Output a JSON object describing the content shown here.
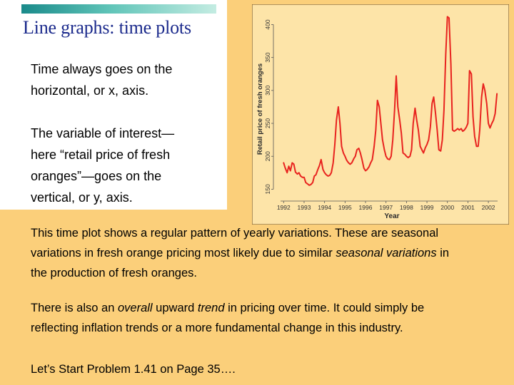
{
  "slide": {
    "title": "Line graphs: time plots",
    "bullet1": [
      "Time always goes on the",
      "horizontal, or x, axis."
    ],
    "bullet2": [
      "The variable of interest—",
      "here “retail price of fresh",
      "oranges”—goes on the",
      "vertical, or y, axis."
    ],
    "para1": {
      "line1": "This time plot shows a regular pattern of yearly variations. These are seasonal",
      "line2_a": "variations in fresh orange pricing most likely due to similar ",
      "line2_italic": "seasonal variations",
      "line2_b": " in",
      "line3": "the production of fresh oranges."
    },
    "para2": {
      "line1_a": "There is also an ",
      "line1_italic1": "overall",
      "line1_b": " upward ",
      "line1_italic2": "trend",
      "line1_c": " in pricing over time. It could simply be",
      "line2": "reflecting inflation trends or a more fundamental change in this industry."
    },
    "para3": "Let’s Start Problem 1.41 on Page 35…."
  },
  "colors": {
    "background": "#fbcf7a",
    "plot_background": "#fde4a8",
    "line": "#e8231f",
    "title_text": "#1b2a8c"
  },
  "chart_data": {
    "type": "line",
    "xlabel": "Year",
    "ylabel": "Retail price of fresh oranges",
    "xlim": [
      1991.85,
      2002.45
    ],
    "ylim": [
      145,
      420
    ],
    "x_ticks": [
      "1992",
      "1993",
      "1994",
      "1995",
      "1996",
      "1997",
      "1998",
      "1999",
      "2000",
      "2001",
      "2002"
    ],
    "y_ticks": [
      "150",
      "200",
      "250",
      "300",
      "350",
      "400"
    ],
    "series": [
      {
        "x": [
          1992.0,
          1992.08,
          1992.17,
          1992.25,
          1992.33,
          1992.42,
          1992.5,
          1992.58,
          1992.67,
          1992.75,
          1992.83,
          1992.92,
          1993.0,
          1993.08,
          1993.17,
          1993.25,
          1993.33,
          1993.42,
          1993.5,
          1993.58,
          1993.67,
          1993.75,
          1993.83,
          1993.92,
          1994.0,
          1994.08,
          1994.17,
          1994.25,
          1994.33,
          1994.42,
          1994.5,
          1994.58,
          1994.67,
          1994.75,
          1994.83,
          1994.92,
          1995.0,
          1995.08,
          1995.17,
          1995.25,
          1995.33,
          1995.42,
          1995.5,
          1995.58,
          1995.67,
          1995.75,
          1995.83,
          1995.92,
          1996.0,
          1996.08,
          1996.17,
          1996.25,
          1996.33,
          1996.42,
          1996.5,
          1996.58,
          1996.67,
          1996.75,
          1996.83,
          1996.92,
          1997.0,
          1997.08,
          1997.17,
          1997.25,
          1997.33,
          1997.42,
          1997.5,
          1997.58,
          1997.67,
          1997.75,
          1997.83,
          1997.92,
          1998.0,
          1998.08,
          1998.17,
          1998.25,
          1998.33,
          1998.42,
          1998.5,
          1998.58,
          1998.67,
          1998.75,
          1998.83,
          1998.92,
          1999.0,
          1999.08,
          1999.17,
          1999.25,
          1999.33,
          1999.42,
          1999.5,
          1999.58,
          1999.67,
          1999.75,
          1999.83,
          1999.92,
          2000.0,
          2000.08,
          2000.17,
          2000.25,
          2000.33,
          2000.42,
          2000.5,
          2000.58,
          2000.67,
          2000.75,
          2000.83,
          2000.92,
          2001.0,
          2001.08,
          2001.17,
          2001.25,
          2001.33,
          2001.42,
          2001.5,
          2001.58,
          2001.67,
          2001.75,
          2001.83,
          2001.92,
          2002.0,
          2002.08,
          2002.17,
          2002.25,
          2002.33,
          2002.42
        ],
        "y": [
          190,
          182,
          175,
          185,
          178,
          190,
          188,
          176,
          173,
          175,
          170,
          168,
          168,
          160,
          158,
          156,
          157,
          160,
          170,
          172,
          180,
          186,
          195,
          180,
          175,
          172,
          170,
          171,
          175,
          190,
          218,
          255,
          275,
          250,
          215,
          205,
          200,
          194,
          190,
          188,
          190,
          196,
          200,
          210,
          212,
          205,
          195,
          182,
          178,
          180,
          184,
          190,
          195,
          215,
          240,
          285,
          275,
          250,
          225,
          210,
          200,
          196,
          195,
          200,
          225,
          270,
          322,
          275,
          255,
          235,
          205,
          203,
          200,
          198,
          200,
          210,
          250,
          273,
          255,
          240,
          215,
          210,
          205,
          213,
          218,
          225,
          245,
          280,
          290,
          265,
          240,
          210,
          208,
          225,
          270,
          355,
          412,
          410,
          340,
          240,
          238,
          240,
          242,
          240,
          242,
          238,
          240,
          244,
          250,
          330,
          325,
          260,
          230,
          215,
          215,
          240,
          290,
          310,
          300,
          280,
          250,
          243,
          250,
          255,
          265,
          295
        ]
      }
    ],
    "grid": false
  }
}
